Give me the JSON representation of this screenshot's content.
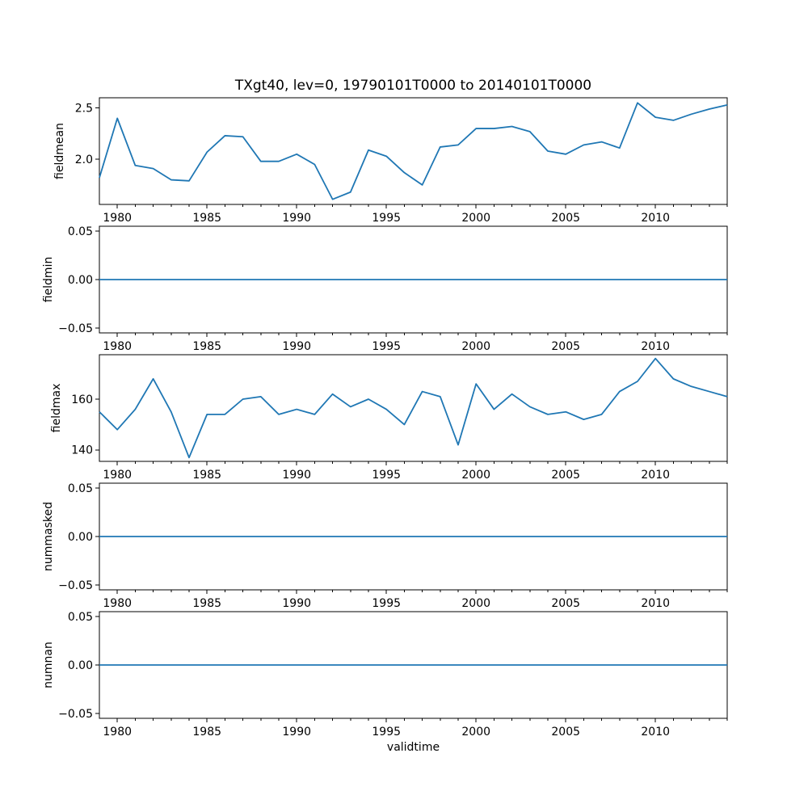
{
  "chart_data": {
    "type": "line",
    "title": "TXgt40, lev=0, 19790101T0000 to 20140101T0000",
    "xlabel": "validtime",
    "x_range": [
      1979,
      2014
    ],
    "x_ticks_labeled": [
      1980,
      1985,
      1990,
      1995,
      2000,
      2005,
      2010
    ],
    "x_minor_tick_step": 1,
    "grid": false,
    "legend": "none",
    "line_color": "#1f77b4",
    "axis_color": "#000000",
    "x": [
      1979,
      1980,
      1981,
      1982,
      1983,
      1984,
      1985,
      1986,
      1987,
      1988,
      1989,
      1990,
      1991,
      1992,
      1993,
      1994,
      1995,
      1996,
      1997,
      1998,
      1999,
      2000,
      2001,
      2002,
      2003,
      2004,
      2005,
      2006,
      2007,
      2008,
      2009,
      2010,
      2011,
      2012,
      2013,
      2014
    ],
    "panels": [
      {
        "ylabel": "fieldmean",
        "y_range": [
          1.56,
          2.6
        ],
        "y_ticks": [
          2.0,
          2.5
        ],
        "y_tick_labels": [
          "2.0",
          "2.5"
        ],
        "values": [
          1.82,
          2.4,
          1.94,
          1.91,
          1.8,
          1.79,
          2.07,
          2.23,
          2.22,
          1.98,
          1.98,
          2.05,
          1.95,
          1.61,
          1.68,
          2.09,
          2.03,
          1.87,
          1.75,
          2.12,
          2.14,
          2.3,
          2.3,
          2.32,
          2.27,
          2.08,
          2.05,
          2.14,
          2.17,
          2.11,
          2.55,
          2.41,
          2.38,
          2.44,
          2.49,
          2.53
        ]
      },
      {
        "ylabel": "fieldmin",
        "y_range": [
          -0.055,
          0.055
        ],
        "y_ticks": [
          -0.05,
          0.0,
          0.05
        ],
        "y_tick_labels": [
          "−0.05",
          "0.00",
          "0.05"
        ],
        "values": [
          0,
          0,
          0,
          0,
          0,
          0,
          0,
          0,
          0,
          0,
          0,
          0,
          0,
          0,
          0,
          0,
          0,
          0,
          0,
          0,
          0,
          0,
          0,
          0,
          0,
          0,
          0,
          0,
          0,
          0,
          0,
          0,
          0,
          0,
          0,
          0
        ]
      },
      {
        "ylabel": "fieldmax",
        "y_range": [
          135.5,
          177.5
        ],
        "y_ticks": [
          140,
          160
        ],
        "y_tick_labels": [
          "140",
          "160"
        ],
        "values": [
          155,
          148,
          156,
          168,
          155,
          137,
          154,
          154,
          160,
          161,
          154,
          156,
          154,
          162,
          157,
          160,
          156,
          150,
          163,
          161,
          142,
          166,
          156,
          162,
          157,
          154,
          155,
          152,
          154,
          163,
          167,
          176,
          168,
          165,
          163,
          161
        ]
      },
      {
        "ylabel": "nummasked",
        "y_range": [
          -0.055,
          0.055
        ],
        "y_ticks": [
          -0.05,
          0.0,
          0.05
        ],
        "y_tick_labels": [
          "−0.05",
          "0.00",
          "0.05"
        ],
        "values": [
          0,
          0,
          0,
          0,
          0,
          0,
          0,
          0,
          0,
          0,
          0,
          0,
          0,
          0,
          0,
          0,
          0,
          0,
          0,
          0,
          0,
          0,
          0,
          0,
          0,
          0,
          0,
          0,
          0,
          0,
          0,
          0,
          0,
          0,
          0,
          0
        ]
      },
      {
        "ylabel": "numnan",
        "y_range": [
          -0.055,
          0.055
        ],
        "y_ticks": [
          -0.05,
          0.0,
          0.05
        ],
        "y_tick_labels": [
          "−0.05",
          "0.00",
          "0.05"
        ],
        "values": [
          0,
          0,
          0,
          0,
          0,
          0,
          0,
          0,
          0,
          0,
          0,
          0,
          0,
          0,
          0,
          0,
          0,
          0,
          0,
          0,
          0,
          0,
          0,
          0,
          0,
          0,
          0,
          0,
          0,
          0,
          0,
          0,
          0,
          0,
          0,
          0
        ]
      }
    ]
  }
}
